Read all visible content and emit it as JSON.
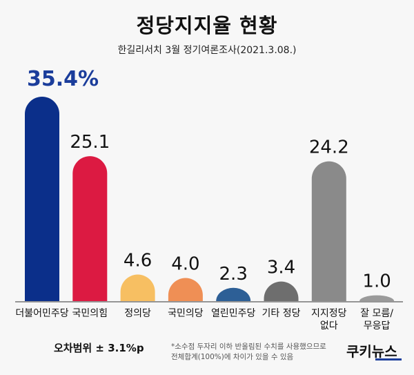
{
  "header": {
    "title": "정당지지율 현황",
    "subtitle": "한길리서치 3월 정기여론조사(2021.3.08.)"
  },
  "footer": {
    "margin_of_error": "오차범위 ± 3.1%p",
    "note_line1": "*소수점 두자리 이하 반올림된 수치를 사용했으므로",
    "note_line2": "전체합계(100%)에 차이가 있을 수 있음",
    "logo_text": "쿠키뉴스"
  },
  "chart_data": {
    "type": "bar",
    "title": "정당지지율 현황",
    "subtitle": "한길리서치 3월 정기여론조사(2021.3.08.)",
    "ylim": [
      0,
      35.4
    ],
    "grid": false,
    "legend": "none",
    "categories": [
      [
        "더불어민주당"
      ],
      [
        "국민의힘"
      ],
      [
        "정의당"
      ],
      [
        "국민의당"
      ],
      [
        "열린민주당"
      ],
      [
        "기타 정당"
      ],
      [
        "지지정당",
        "없다"
      ],
      [
        "잘 모름/",
        "무응답"
      ]
    ],
    "values": [
      35.4,
      25.1,
      4.6,
      4.0,
      2.3,
      3.4,
      24.2,
      1.0
    ],
    "value_labels": [
      "35.4%",
      "25.1",
      "4.6",
      "4.0",
      "2.3",
      "3.4",
      "24.2",
      "1.0"
    ],
    "colors": [
      "#0b2f8a",
      "#dc1a42",
      "#f7bf62",
      "#ef8f55",
      "#2d5f96",
      "#6e6e6e",
      "#8a8a8a",
      "#9a9a9a"
    ],
    "highlight_color": "#1b3d9b"
  }
}
